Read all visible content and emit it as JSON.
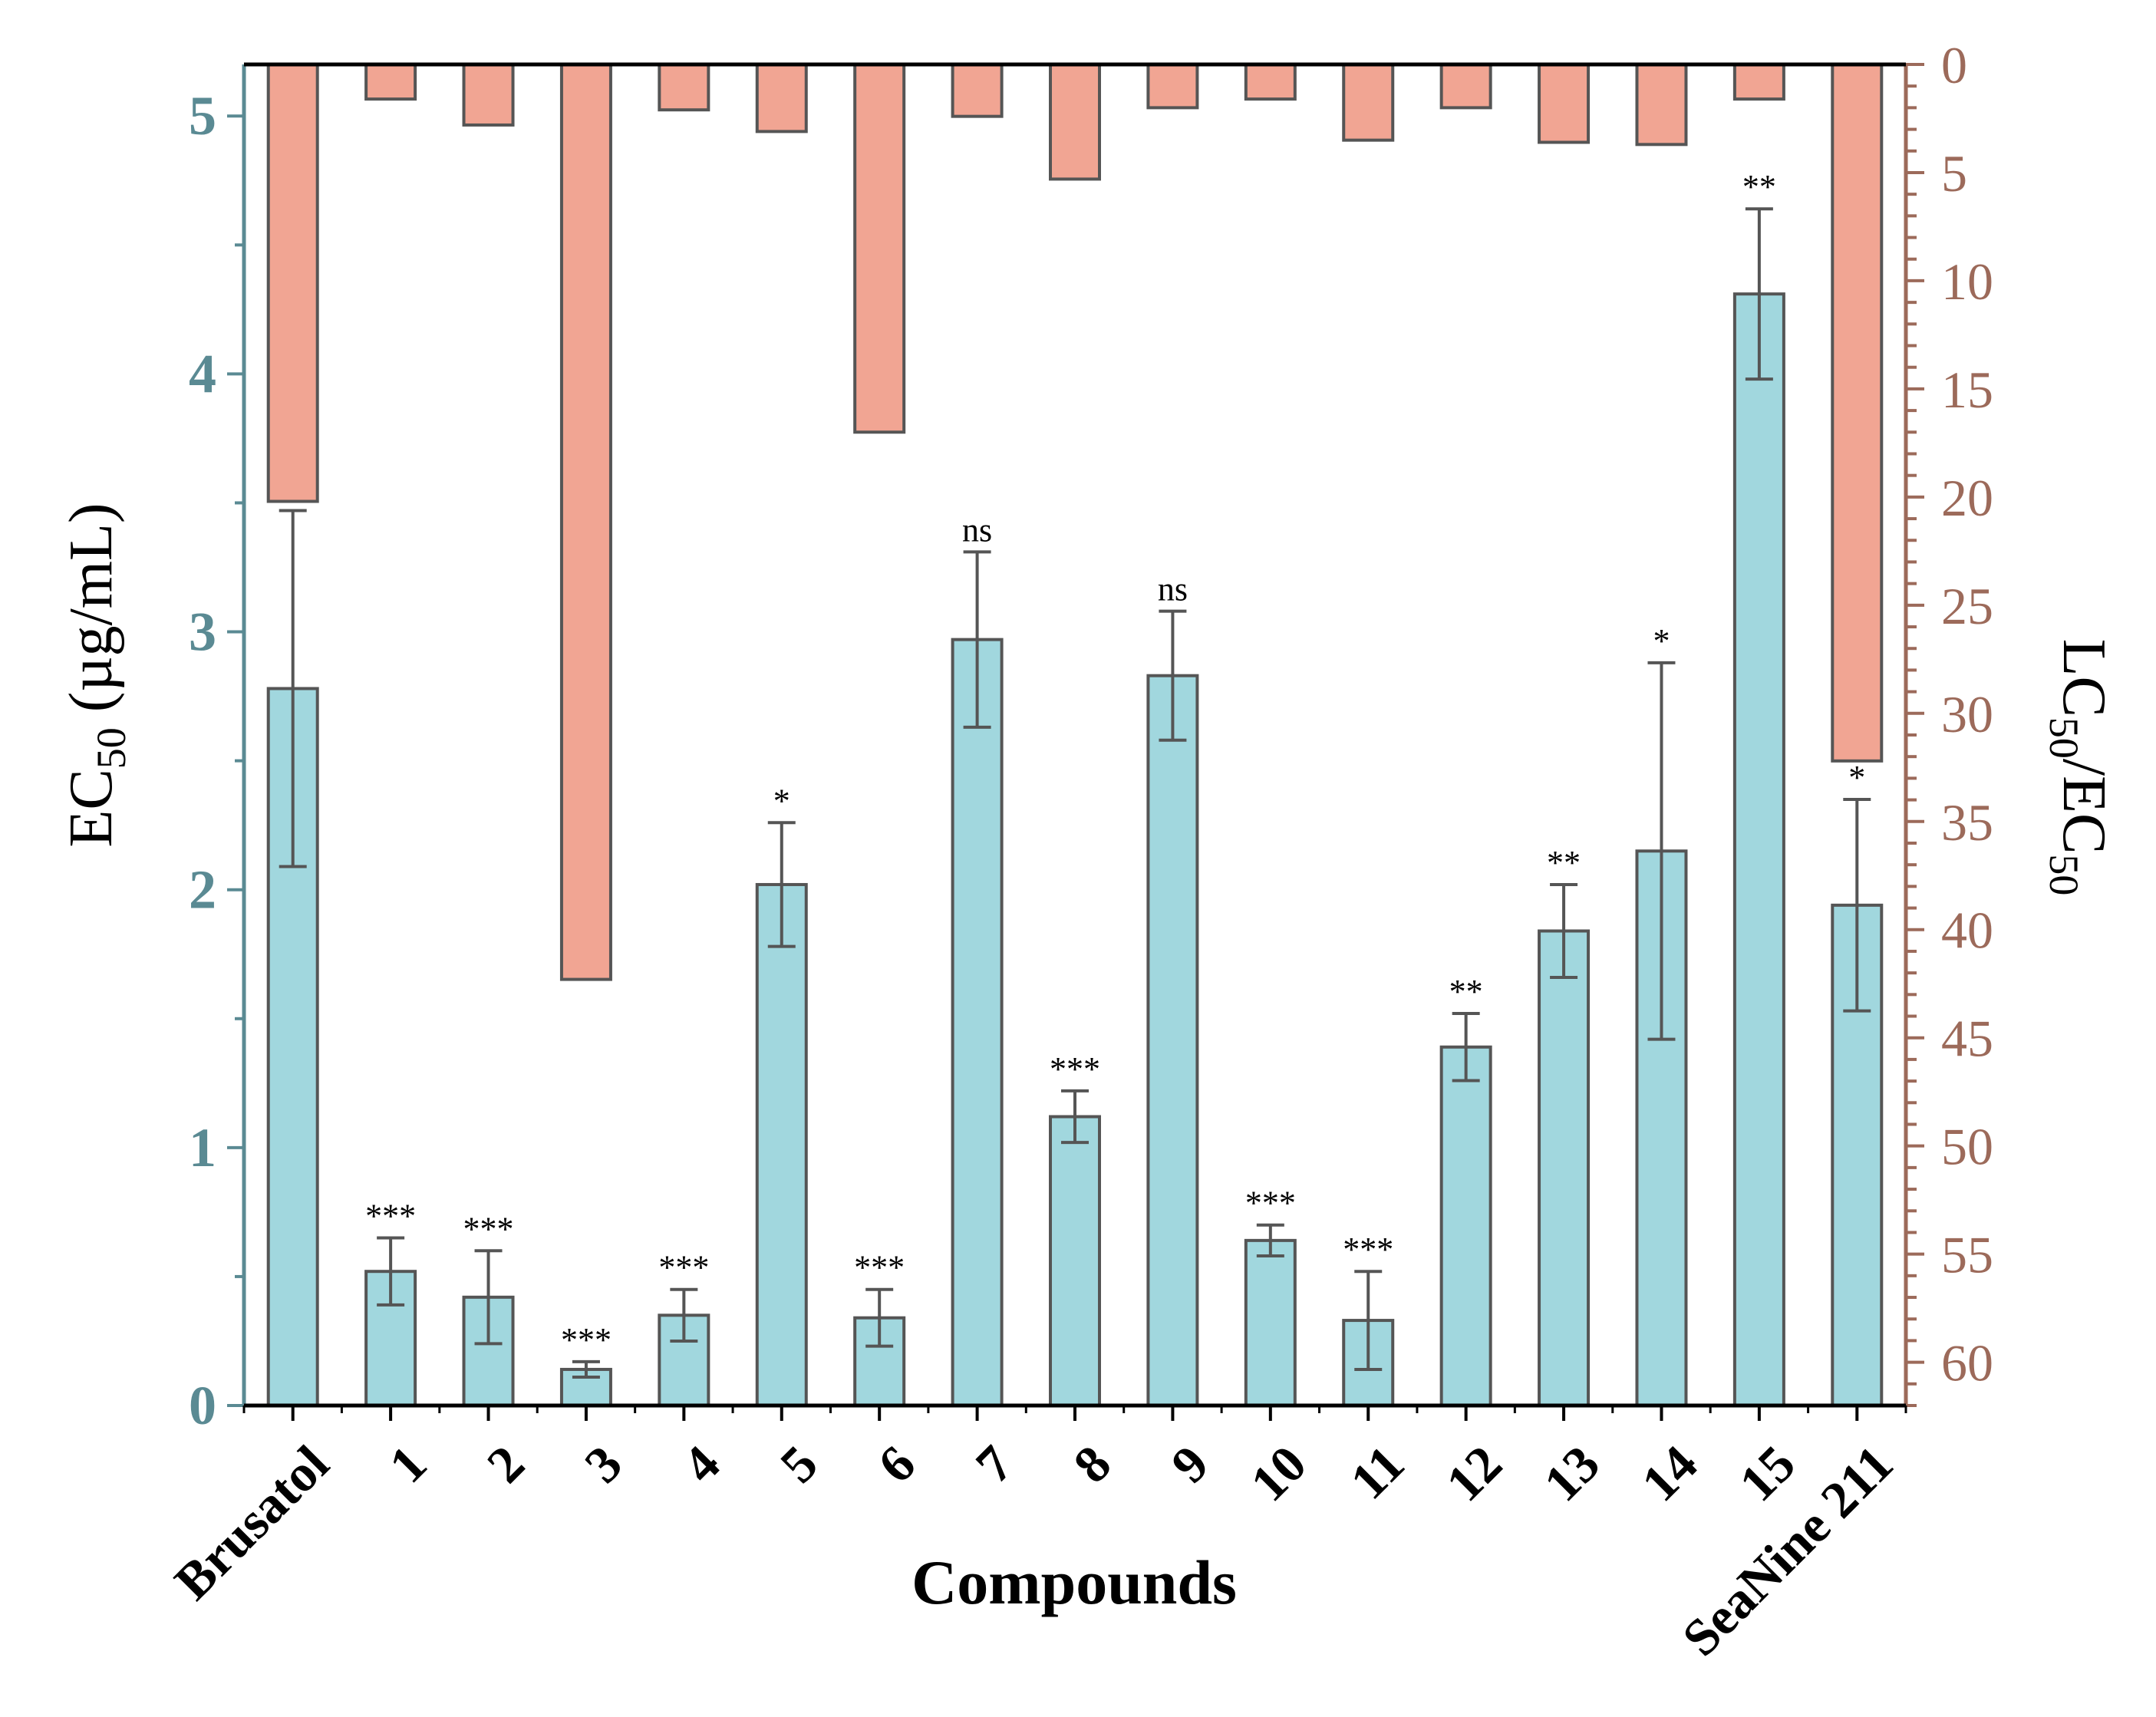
{
  "chart_data": {
    "type": "bar",
    "xlabel": "Compounds",
    "ylabel": {
      "main": "EC",
      "sub": "50",
      "unit": " (µg/mL)"
    },
    "y2label": {
      "a": "LC",
      "a_sub": "50",
      "mid": "/EC",
      "b_sub": "50"
    },
    "ylim": [
      0,
      5.2
    ],
    "y2lim": [
      0,
      62
    ],
    "y2_inverted": true,
    "yticks": [
      "0",
      "1",
      "2",
      "3",
      "4",
      "5"
    ],
    "y2ticks": [
      "0",
      "5",
      "10",
      "15",
      "20",
      "25",
      "30",
      "35",
      "40",
      "45",
      "50",
      "55",
      "60"
    ],
    "categories": [
      "Brusatol",
      "1",
      "2",
      "3",
      "4",
      "5",
      "6",
      "7",
      "8",
      "9",
      "10",
      "11",
      "12",
      "13",
      "14",
      "15",
      "SeaNine 211"
    ],
    "series": [
      {
        "name": "EC50",
        "axis": "left",
        "values": [
          2.78,
          0.52,
          0.42,
          0.14,
          0.35,
          2.02,
          0.34,
          2.97,
          1.12,
          2.83,
          0.64,
          0.33,
          1.39,
          1.84,
          2.15,
          4.31,
          1.94
        ],
        "errors": [
          0.69,
          0.13,
          0.18,
          0.03,
          0.1,
          0.24,
          0.11,
          0.34,
          0.1,
          0.25,
          0.06,
          0.19,
          0.13,
          0.18,
          0.73,
          0.33,
          0.41
        ],
        "significance": [
          "",
          "***",
          "***",
          "***",
          "***",
          "*",
          "***",
          "ns",
          "***",
          "ns",
          "***",
          "***",
          "**",
          "**",
          "*",
          "**",
          "*"
        ]
      },
      {
        "name": "LC50/EC50",
        "axis": "right",
        "values": [
          20.2,
          1.6,
          2.8,
          42.3,
          2.1,
          3.1,
          17.0,
          2.4,
          5.3,
          2.0,
          1.6,
          3.5,
          2.0,
          3.6,
          3.7,
          1.6,
          32.2
        ]
      }
    ],
    "colors": {
      "ec50_fill": "#a1d7de",
      "ratio_fill": "#f1a593",
      "bar_stroke": "#555555",
      "left_axis": "#5a8a93",
      "right_axis": "#9c6a5a",
      "text": "#000000"
    }
  }
}
